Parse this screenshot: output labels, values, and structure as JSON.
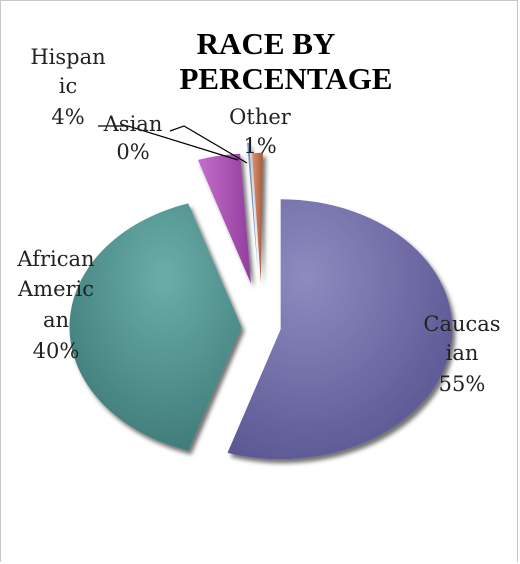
{
  "chart_data": {
    "type": "pie",
    "title_lines": [
      "RACE BY",
      "PERCENTAGE"
    ],
    "slices": [
      {
        "name_lines": [
          "Caucas",
          "ian"
        ],
        "value_label": "55%",
        "value": 55,
        "color": "#6f6ba6"
      },
      {
        "name_lines": [
          "African",
          "Americ",
          "an"
        ],
        "value_label": "40%",
        "value": 40,
        "color": "#4b8f8c"
      },
      {
        "name_lines": [
          "Hispan",
          "ic"
        ],
        "value_label": "4%",
        "value": 4,
        "color": "#b058b8"
      },
      {
        "name_lines": [
          "Asian"
        ],
        "value_label": "0%",
        "value": 0,
        "color": "#7a93c4"
      },
      {
        "name_lines": [
          "Other"
        ],
        "value_label": "1%",
        "value": 1,
        "color": "#c77a58"
      }
    ],
    "exploded": true,
    "legend": "none"
  }
}
